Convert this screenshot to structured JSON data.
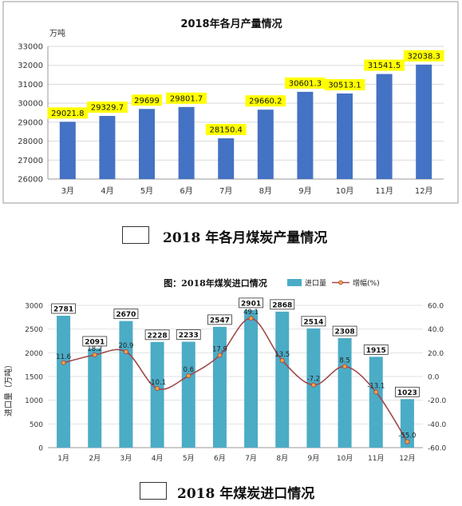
{
  "figure1": {
    "caption": "2018 年各月煤炭产量情况",
    "chart_data": {
      "type": "bar",
      "title": "2018年各月产量情况",
      "unit_label": "万吨",
      "categories": [
        "3月",
        "4月",
        "5月",
        "6月",
        "7月",
        "8月",
        "9月",
        "10月",
        "11月",
        "12月"
      ],
      "values": [
        29021.8,
        29329.7,
        29699,
        29801.7,
        28150.4,
        29660.2,
        30601.3,
        30513.1,
        31541.5,
        32038.3
      ],
      "value_labels": [
        "29021.8",
        "29329.7",
        "29699",
        "29801.7",
        "28150.4",
        "29660.2",
        "30601.3",
        "30513.1",
        "31541.5",
        "32038.3"
      ],
      "ylim": [
        26000,
        33000
      ],
      "y_ticks": [
        "26000",
        "27000",
        "28000",
        "29000",
        "30000",
        "31000",
        "32000",
        "33000"
      ],
      "grid": true,
      "colors": {
        "bar": "#4472c4",
        "label_bg": "#ffff00"
      }
    }
  },
  "figure2": {
    "caption": "2018 年煤炭进口情况",
    "chart_data": {
      "type": "bar",
      "title": "图：2018年煤炭进口情况",
      "ylabel": "进口量（万吨）",
      "categories": [
        "1月",
        "2月",
        "3月",
        "4月",
        "5月",
        "6月",
        "7月",
        "8月",
        "9月",
        "10月",
        "11月",
        "12月"
      ],
      "series": [
        {
          "name": "进口量",
          "values": [
            2781,
            2091,
            2670,
            2228,
            2233,
            2547,
            2901,
            2868,
            2514,
            2308,
            1915,
            1023
          ],
          "labels": [
            "2781",
            "2091",
            "2670",
            "2228",
            "2233",
            "2547",
            "2901",
            "2868",
            "2514",
            "2308",
            "1915",
            "1023"
          ]
        },
        {
          "name": "增幅(%)",
          "axis": "right",
          "type": "line",
          "values": [
            11.6,
            18.2,
            20.9,
            -10.1,
            0.6,
            17.9,
            49.1,
            13.5,
            -7.2,
            8.5,
            -13.1,
            -55.0
          ],
          "labels": [
            "11.6",
            "18.2",
            "20.9",
            "-10.1",
            "0.6",
            "17.9",
            "49.1",
            "13.5",
            "-7.2",
            "8.5",
            "-13.1",
            "-55.0"
          ]
        }
      ],
      "ylim": [
        0,
        3000
      ],
      "y2lim": [
        -60,
        60
      ],
      "y_ticks": [
        "0",
        "500",
        "1000",
        "1500",
        "2000",
        "2500",
        "3000"
      ],
      "y2_ticks": [
        "-60.0",
        "-40.0",
        "-20.0",
        "0.0",
        "20.0",
        "40.0",
        "60.0"
      ],
      "legend_position": "top-right",
      "grid": true,
      "colors": {
        "bar": "#4bacc6",
        "line": "#a2474a",
        "marker": "#f4a23c"
      }
    }
  }
}
